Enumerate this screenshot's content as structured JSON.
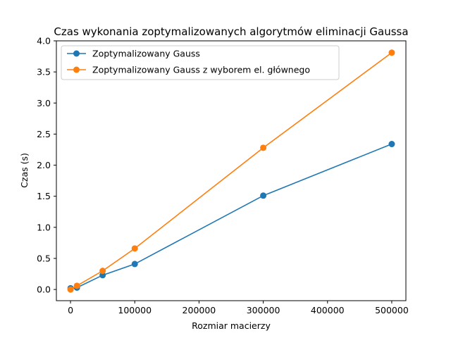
{
  "chart_data": {
    "type": "line",
    "title": "Czas wykonania zoptymalizowanych algorytmów eliminacji Gaussa",
    "xlabel": "Rozmiar macierzy",
    "ylabel": "Czas (s)",
    "xlim": [
      -22000,
      522000
    ],
    "ylim": [
      -0.18,
      4.0
    ],
    "x_ticks": [
      0,
      100000,
      200000,
      300000,
      400000,
      500000
    ],
    "y_ticks": [
      0.0,
      0.5,
      1.0,
      1.5,
      2.0,
      2.5,
      3.0,
      3.5,
      4.0
    ],
    "x_tick_labels": [
      "0",
      "100000",
      "200000",
      "300000",
      "400000",
      "500000"
    ],
    "y_tick_labels": [
      "0.0",
      "0.5",
      "1.0",
      "1.5",
      "2.0",
      "2.5",
      "3.0",
      "3.5",
      "4.0"
    ],
    "grid": false,
    "legend_position": "upper-left",
    "series": [
      {
        "name": "Zoptymalizowany Gauss",
        "color": "#1f77b4",
        "points": [
          [
            100,
            0.02
          ],
          [
            10000,
            0.03
          ],
          [
            50000,
            0.23
          ],
          [
            100000,
            0.41
          ],
          [
            300000,
            1.51
          ],
          [
            500000,
            2.34
          ]
        ]
      },
      {
        "name": "Zoptymalizowany Gauss z wyborem el. głównego",
        "color": "#ff7f0e",
        "points": [
          [
            100,
            0.0
          ],
          [
            10000,
            0.06
          ],
          [
            50000,
            0.3
          ],
          [
            100000,
            0.66
          ],
          [
            300000,
            2.28
          ],
          [
            500000,
            3.81
          ]
        ]
      }
    ]
  }
}
